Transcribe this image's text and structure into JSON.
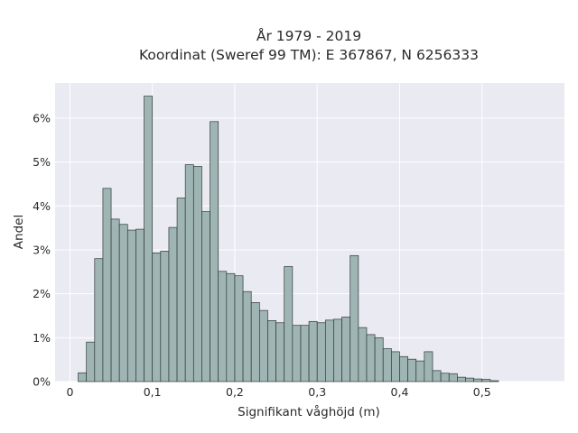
{
  "chart_data": {
    "type": "bar",
    "title_line1": "År 1979 - 2019",
    "title_line2": "Koordinat (Sweref 99 TM): E 367867, N 6256333",
    "xlabel": "Signifikant våghöjd (m)",
    "ylabel": "Andel",
    "xlim": [
      -0.018,
      0.6
    ],
    "ylim": [
      0,
      0.068
    ],
    "grid": true,
    "bar_color": "#9fb5b4",
    "bar_edge_color": "#2f3a39",
    "plot_background": "#eaeaf2",
    "grid_color": "#ffffff",
    "bin_width": 0.01,
    "bin_start": 0.01,
    "x_ticks": [
      {
        "value": 0,
        "label": "0"
      },
      {
        "value": 0.1,
        "label": "0,1"
      },
      {
        "value": 0.2,
        "label": "0,2"
      },
      {
        "value": 0.3,
        "label": "0,3"
      },
      {
        "value": 0.4,
        "label": "0,4"
      },
      {
        "value": 0.5,
        "label": "0,5"
      }
    ],
    "y_ticks": [
      {
        "value": 0,
        "label": "0%"
      },
      {
        "value": 0.01,
        "label": "1%"
      },
      {
        "value": 0.02,
        "label": "2%"
      },
      {
        "value": 0.03,
        "label": "3%"
      },
      {
        "value": 0.04,
        "label": "4%"
      },
      {
        "value": 0.05,
        "label": "5%"
      },
      {
        "value": 0.06,
        "label": "6%"
      }
    ],
    "values": [
      0.002,
      0.009,
      0.028,
      0.044,
      0.037,
      0.0358,
      0.0345,
      0.0347,
      0.065,
      0.0293,
      0.0297,
      0.0351,
      0.0418,
      0.0494,
      0.049,
      0.0387,
      0.0592,
      0.0251,
      0.0246,
      0.0241,
      0.0205,
      0.018,
      0.0162,
      0.0139,
      0.0134,
      0.0262,
      0.0128,
      0.0128,
      0.0137,
      0.0134,
      0.014,
      0.0142,
      0.0147,
      0.0287,
      0.0123,
      0.0107,
      0.01,
      0.0075,
      0.0068,
      0.0057,
      0.0051,
      0.0047,
      0.0068,
      0.0025,
      0.0019,
      0.0018,
      0.001,
      0.0008,
      0.0006,
      0.0005,
      0.0002
    ]
  }
}
